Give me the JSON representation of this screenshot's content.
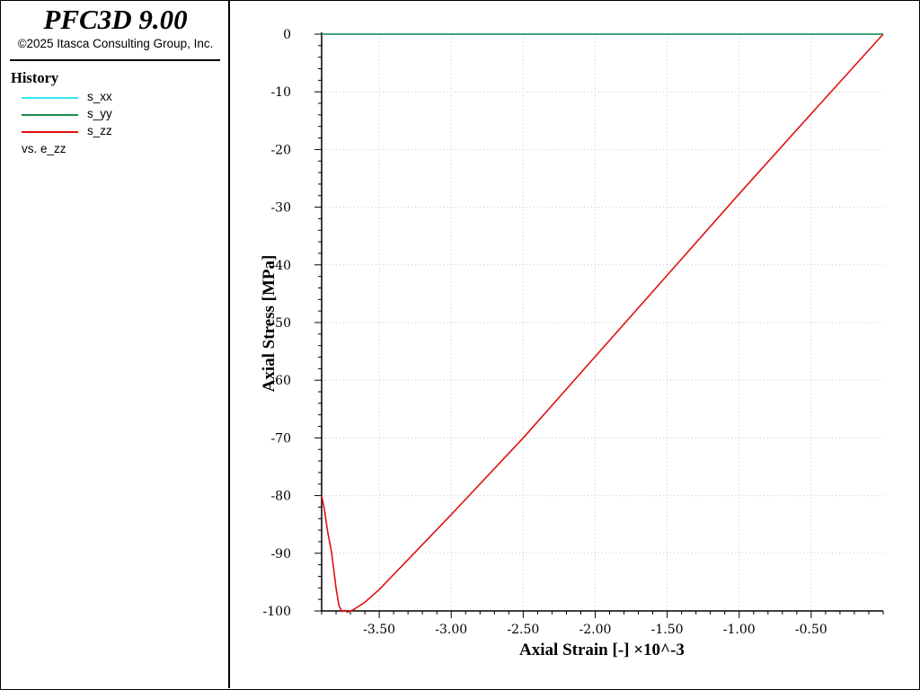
{
  "app": {
    "title": "PFC3D 9.00",
    "copyright": "©2025 Itasca Consulting Group, Inc."
  },
  "legend": {
    "heading": "History",
    "entries": [
      {
        "label": "s_xx",
        "color": "#33e6f2"
      },
      {
        "label": "s_yy",
        "color": "#1f8a4c"
      },
      {
        "label": "s_zz",
        "color": "#e01010"
      }
    ],
    "versus": "vs. e_zz"
  },
  "chart_data": {
    "type": "line",
    "xlabel": "Axial Strain [-] ×10^-3",
    "ylabel": "Axial Stress [MPa]",
    "xlim": [
      -3.9,
      0.0
    ],
    "ylim": [
      -100,
      0
    ],
    "grid": true,
    "x_ticks": [
      -3.5,
      -3.0,
      -2.5,
      -2.0,
      -1.5,
      -1.0,
      -0.5
    ],
    "x_tick_labels": [
      "-3.50",
      "-3.00",
      "-2.50",
      "-2.00",
      "-1.50",
      "-1.00",
      "-0.50"
    ],
    "y_ticks": [
      0,
      -10,
      -20,
      -30,
      -40,
      -50,
      -60,
      -70,
      -80,
      -90,
      -100
    ],
    "y_tick_labels": [
      "0",
      "-10",
      "-20",
      "-30",
      "-40",
      "-50",
      "-60",
      "-70",
      "-80",
      "-90",
      "-100"
    ],
    "series": [
      {
        "name": "s_xx",
        "color": "#33e6f2",
        "x": [
          0.0,
          -3.9
        ],
        "y": [
          0,
          0
        ]
      },
      {
        "name": "s_yy",
        "color": "#1f8a4c",
        "x": [
          0.0,
          -3.9
        ],
        "y": [
          0,
          0
        ]
      },
      {
        "name": "s_zz",
        "color": "#e01010",
        "x": [
          0.0,
          -0.5,
          -1.0,
          -1.5,
          -2.0,
          -2.5,
          -3.0,
          -3.5,
          -3.6,
          -3.68,
          -3.7,
          -3.72,
          -3.74,
          -3.76,
          -3.78,
          -3.8,
          -3.83,
          -3.86,
          -3.88,
          -3.9
        ],
        "y": [
          0,
          -13.8,
          -27.7,
          -41.8,
          -55.9,
          -70.0,
          -83.3,
          -96.3,
          -98.5,
          -99.8,
          -100,
          -100.2,
          -99.9,
          -100.1,
          -99.0,
          -96.0,
          -90.0,
          -86.0,
          -82.5,
          -80.0
        ]
      }
    ]
  }
}
